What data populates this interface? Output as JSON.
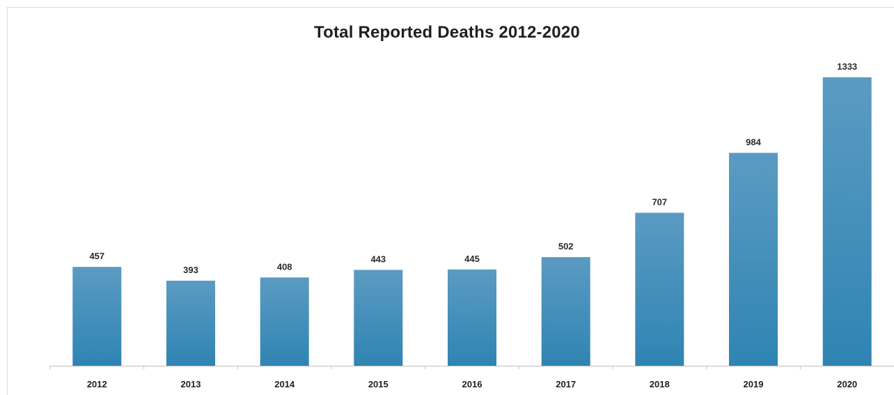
{
  "chart_data": {
    "type": "bar",
    "title": "Total Reported Deaths 2012-2020",
    "xlabel": "",
    "ylabel": "",
    "categories": [
      "2012",
      "2013",
      "2014",
      "2015",
      "2016",
      "2017",
      "2018",
      "2019",
      "2020"
    ],
    "values": [
      457,
      393,
      408,
      443,
      445,
      502,
      707,
      984,
      1333
    ],
    "data_labels": [
      "457",
      "393",
      "408",
      "443",
      "445",
      "502",
      "707",
      "984",
      "1333"
    ],
    "ylim": [
      0,
      1333
    ],
    "grid": false,
    "legend": "none",
    "colors": {
      "bar_top": "#5b9bc2",
      "bar_bottom": "#2f84b3",
      "axis": "#bfbfbf"
    }
  }
}
